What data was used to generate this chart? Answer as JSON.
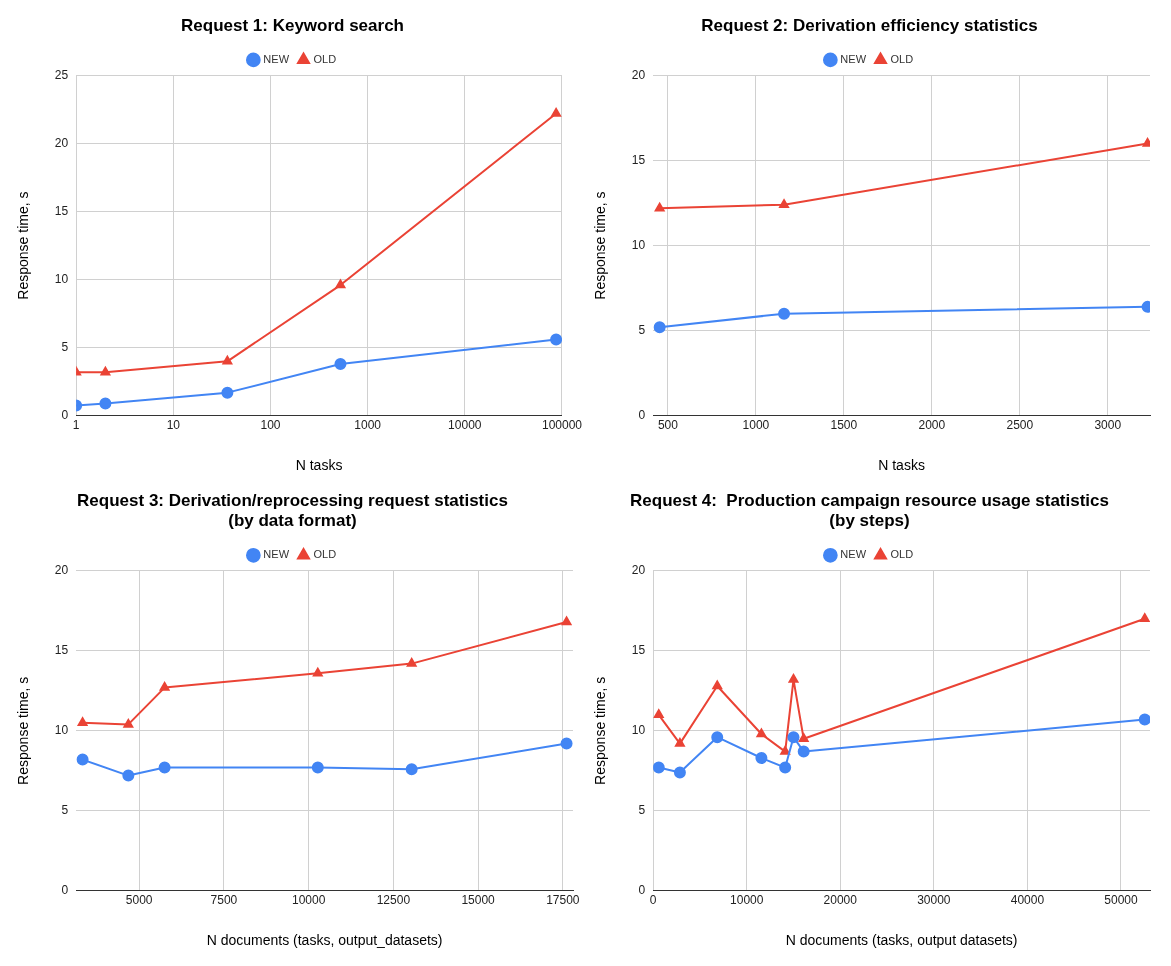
{
  "chart_data": [
    {
      "type": "line",
      "title": "Request 1: Keyword search",
      "xlabel": "N tasks",
      "ylabel": "Response time, s",
      "log": "x",
      "grid": true,
      "legend": "top",
      "xlim": [
        1,
        100000
      ],
      "xticks": [
        1,
        10,
        100,
        1000,
        10000,
        100000
      ],
      "ylim": [
        0,
        25
      ],
      "yticks": [
        0,
        5,
        10,
        15,
        20,
        25
      ],
      "x": [
        1,
        2,
        36,
        525,
        87000
      ],
      "series": [
        {
          "name": "NEW",
          "color": "#4285f4",
          "marker": "circle",
          "values": [
            0.75,
            0.9,
            1.7,
            3.8,
            5.6
          ]
        },
        {
          "name": "OLD",
          "color": "#ea4335",
          "marker": "triangle",
          "values": [
            3.2,
            3.2,
            4.0,
            9.6,
            22.2
          ]
        }
      ]
    },
    {
      "type": "line",
      "title": "Request 2: Derivation efficiency statistics",
      "xlabel": "N tasks",
      "ylabel": "Response time, s",
      "grid": true,
      "legend": "top",
      "xlim": [
        416,
        3240
      ],
      "xticks": [
        500,
        1000,
        1500,
        2000,
        2500,
        3000
      ],
      "ylim": [
        0,
        20
      ],
      "yticks": [
        0,
        5,
        10,
        15,
        20
      ],
      "x": [
        453,
        1160,
        3226
      ],
      "series": [
        {
          "name": "NEW",
          "color": "#4285f4",
          "marker": "circle",
          "values": [
            5.2,
            6.0,
            6.4
          ]
        },
        {
          "name": "OLD",
          "color": "#ea4335",
          "marker": "triangle",
          "values": [
            12.2,
            12.4,
            16.0
          ]
        }
      ]
    },
    {
      "type": "line",
      "title": "Request 3: Derivation/reprocessing request statistics\n(by data format)",
      "xlabel": "N documents (tasks, output_datasets)",
      "ylabel": "Response time, s",
      "grid": true,
      "legend": "top",
      "xlim": [
        3140,
        17800
      ],
      "xticks": [
        5000,
        7500,
        10000,
        12500,
        15000,
        17500
      ],
      "ylim": [
        0,
        20
      ],
      "yticks": [
        0,
        5,
        10,
        15,
        20
      ],
      "x": [
        3330,
        4680,
        5750,
        10270,
        13040,
        17610
      ],
      "series": [
        {
          "name": "NEW",
          "color": "#4285f4",
          "marker": "circle",
          "values": [
            8.2,
            7.2,
            7.7,
            7.7,
            7.6,
            9.2
          ]
        },
        {
          "name": "OLD",
          "color": "#ea4335",
          "marker": "triangle",
          "values": [
            10.5,
            10.4,
            12.7,
            13.6,
            14.2,
            16.8
          ]
        }
      ]
    },
    {
      "type": "line",
      "title": "Request 4:  Production campaign resource usage statistics\n(by steps)",
      "xlabel": "N documents (tasks, output datasets)",
      "ylabel": "Response time, s",
      "grid": true,
      "legend": "top",
      "xlim": [
        0,
        53100
      ],
      "xticks": [
        0,
        10000,
        20000,
        30000,
        40000,
        50000
      ],
      "ylim": [
        0,
        20
      ],
      "yticks": [
        0,
        5,
        10,
        15,
        20
      ],
      "x": [
        600,
        2860,
        6850,
        11570,
        14110,
        15000,
        16090,
        52540
      ],
      "series": [
        {
          "name": "NEW",
          "color": "#4285f4",
          "marker": "circle",
          "values": [
            7.7,
            7.4,
            9.6,
            8.3,
            7.7,
            9.6,
            8.7,
            10.7
          ]
        },
        {
          "name": "OLD",
          "color": "#ea4335",
          "marker": "triangle",
          "values": [
            11.0,
            9.2,
            12.8,
            9.8,
            8.7,
            13.2,
            9.5,
            17.0
          ]
        }
      ]
    }
  ]
}
